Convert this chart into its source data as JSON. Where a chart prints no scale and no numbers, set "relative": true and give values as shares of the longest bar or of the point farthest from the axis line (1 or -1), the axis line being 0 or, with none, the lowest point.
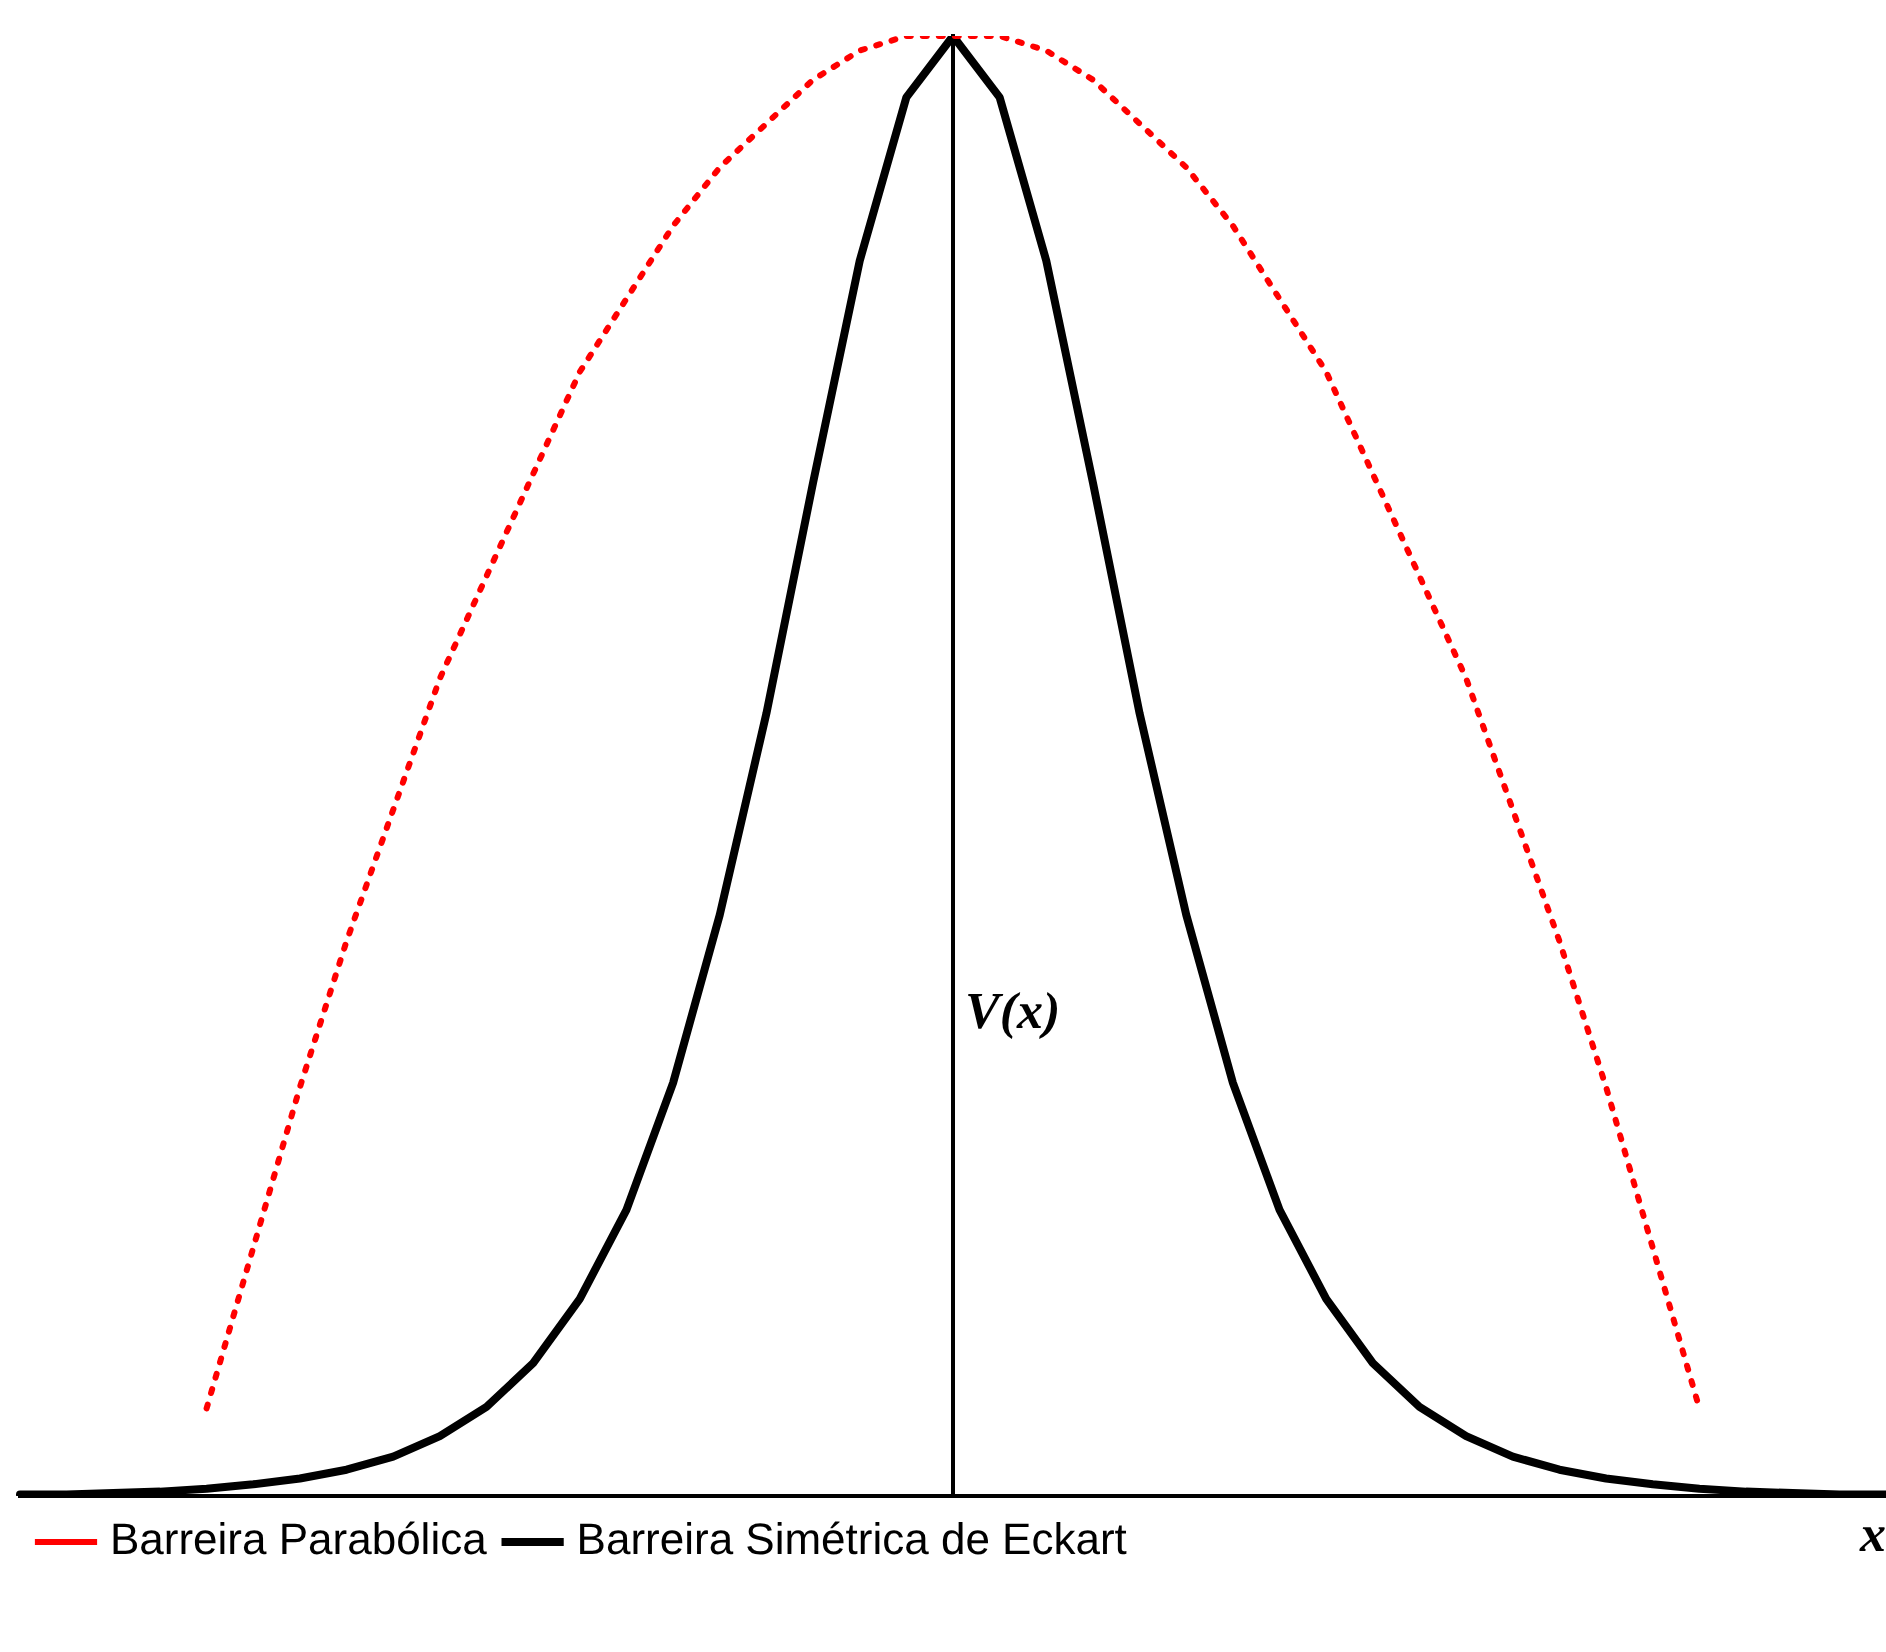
{
  "chart_data": {
    "type": "line",
    "relative": true,
    "xlabel": "x",
    "ylabel": "V(x)",
    "legend": "bottom left",
    "marker": "none",
    "categories": [
      null,
      null,
      null,
      null,
      null,
      null,
      null,
      null,
      null,
      null,
      null,
      null,
      null,
      null,
      null,
      null,
      null,
      null,
      null,
      null,
      null,
      null,
      null,
      null,
      null,
      null,
      null,
      null,
      null,
      null,
      null,
      null,
      null,
      null,
      null,
      null,
      null,
      null,
      null,
      null,
      null
    ],
    "series": [
      {
        "name": "Barreira Parabólica",
        "color": "#ff0000",
        "line_style": "dotted",
        "values": [
          null,
          null,
          null,
          null,
          0.06,
          0.17,
          0.28,
          0.38,
          0.47,
          0.56,
          0.63,
          0.7,
          0.77,
          0.82,
          0.87,
          0.91,
          0.94,
          0.97,
          0.99,
          1.0,
          1.0,
          1.0,
          0.99,
          0.97,
          0.94,
          0.91,
          0.87,
          0.82,
          0.77,
          0.7,
          0.63,
          0.56,
          0.47,
          0.38,
          0.28,
          0.17,
          0.06,
          null,
          null,
          null,
          null
        ]
      },
      {
        "name": "Barreira Simétrica de Eckart",
        "color": "#000000",
        "line_style": "solid",
        "values": [
          0.001,
          0.001,
          0.002,
          0.003,
          0.005,
          0.008,
          0.012,
          0.018,
          0.027,
          0.041,
          0.061,
          0.091,
          0.135,
          0.196,
          0.283,
          0.398,
          0.536,
          0.694,
          0.846,
          0.958,
          1.0,
          0.958,
          0.846,
          0.694,
          0.536,
          0.398,
          0.283,
          0.196,
          0.135,
          0.091,
          0.061,
          0.041,
          0.027,
          0.018,
          0.012,
          0.008,
          0.005,
          0.003,
          0.002,
          0.001,
          0.001
        ]
      }
    ]
  }
}
